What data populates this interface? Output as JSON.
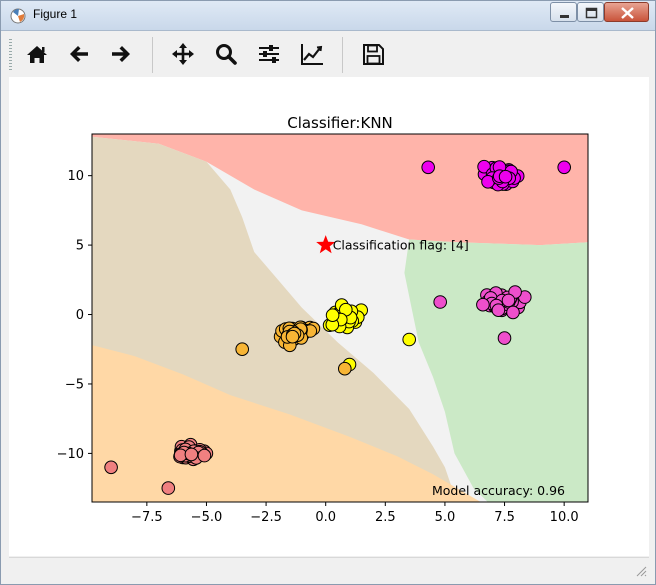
{
  "window": {
    "title": "Figure 1",
    "icons": [
      "matplotlib-icon",
      "minimize-icon",
      "maximize-icon",
      "close-icon"
    ]
  },
  "toolbar": {
    "tools": [
      {
        "name": "home",
        "icon": "home-icon"
      },
      {
        "name": "back",
        "icon": "back-arrow-icon"
      },
      {
        "name": "forward",
        "icon": "forward-arrow-icon"
      },
      {
        "name": "pan",
        "icon": "move-icon"
      },
      {
        "name": "zoom",
        "icon": "zoom-icon"
      },
      {
        "name": "subplots",
        "icon": "sliders-icon"
      },
      {
        "name": "edit-axis",
        "icon": "chart-line-icon"
      },
      {
        "name": "save",
        "icon": "save-icon"
      }
    ]
  },
  "chart_data": {
    "type": "scatter",
    "title": "Classifier:KNN",
    "xlabel": "",
    "ylabel": "",
    "xlim": [
      -9.8,
      11.0
    ],
    "ylim": [
      -13.5,
      13.0
    ],
    "xticks": [
      -7.5,
      -5.0,
      -2.5,
      0.0,
      2.5,
      5.0,
      7.5,
      10.0
    ],
    "xtick_labels": [
      "−7.5",
      "−5.0",
      "−2.5",
      "0.0",
      "2.5",
      "5.0",
      "7.5",
      "10.0"
    ],
    "yticks": [
      10,
      5,
      0,
      -5,
      -10
    ],
    "ytick_labels": [
      "10",
      "5",
      "0",
      "−5",
      "−10"
    ],
    "grid": false,
    "background_regions": [
      {
        "class": 0,
        "color": "#ffb4aa"
      },
      {
        "class": 1,
        "color": "#f2f2f2"
      },
      {
        "class": 2,
        "color": "#e4d8bf"
      },
      {
        "class": 3,
        "color": "#ffd8a6"
      },
      {
        "class": 4,
        "color": "#cbe9c6"
      }
    ],
    "clusters": [
      {
        "color": "#ee00ee",
        "center": [
          7.3,
          10.0
        ],
        "spread": [
          1.15,
          1.0
        ],
        "count": 60
      },
      {
        "color": "#ee4fcc",
        "center": [
          7.3,
          0.9
        ],
        "spread": [
          1.15,
          0.95
        ],
        "count": 60
      },
      {
        "color": "#ffff00",
        "center": [
          0.8,
          -0.2
        ],
        "spread": [
          1.05,
          1.15
        ],
        "count": 45
      },
      {
        "color": "#f7b535",
        "center": [
          -1.2,
          -1.4
        ],
        "spread": [
          1.05,
          1.05
        ],
        "count": 45
      },
      {
        "color": "#f08080",
        "center": [
          -5.6,
          -9.9
        ],
        "spread": [
          0.9,
          0.75
        ],
        "count": 55
      }
    ],
    "outliers": [
      {
        "x": -9.0,
        "y": -11.0,
        "color": "#f08080"
      },
      {
        "x": -6.6,
        "y": -12.5,
        "color": "#f08080"
      },
      {
        "x": 3.5,
        "y": -1.8,
        "color": "#ffff00"
      },
      {
        "x": 1.0,
        "y": -3.6,
        "color": "#ffff00"
      },
      {
        "x": 0.8,
        "y": -3.9,
        "color": "#f7b535"
      },
      {
        "x": -3.5,
        "y": -2.5,
        "color": "#f7b535"
      },
      {
        "x": 4.3,
        "y": 10.6,
        "color": "#ee00ee"
      },
      {
        "x": 10.0,
        "y": 10.6,
        "color": "#ee00ee"
      },
      {
        "x": 4.8,
        "y": 0.9,
        "color": "#ee4fcc"
      },
      {
        "x": 7.5,
        "y": -1.7,
        "color": "#ee4fcc"
      }
    ],
    "flag_point": {
      "x": 0.0,
      "y": 5.0,
      "color": "#ff0000",
      "label": "Classification flag: [4]"
    },
    "accuracy_label": "Model accuracy: 0.96"
  }
}
